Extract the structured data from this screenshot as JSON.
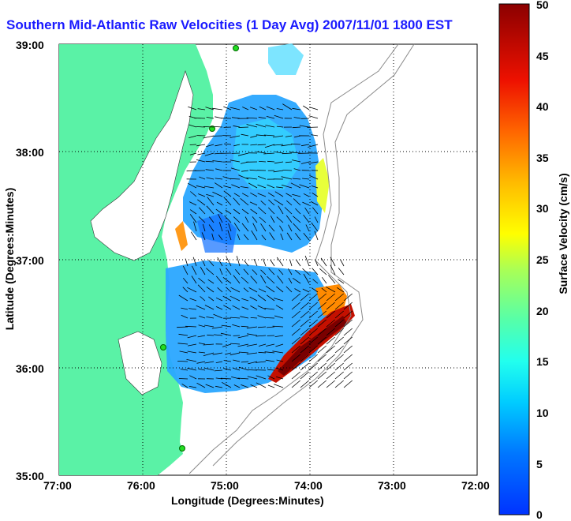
{
  "title": "Southern Mid-Atlantic Raw Velocities (1 Day Avg) 2007/11/01 1800 EST",
  "xlabel": "Longitude (Degrees:Minutes)",
  "ylabel": "Latitude (Degrees:Minutes)",
  "colorbar_label": "Surface Velocity (cm/s)",
  "x_ticks": [
    "77:00",
    "76:00",
    "75:00",
    "74:00",
    "73:00",
    "72:00"
  ],
  "y_ticks": [
    "39:00",
    "38:00",
    "37:00",
    "36:00",
    "35:00"
  ],
  "colorbar_ticks": [
    "0",
    "5",
    "10",
    "15",
    "20",
    "25",
    "30",
    "35",
    "40",
    "45",
    "50"
  ],
  "map_extent": {
    "lon_min": -77,
    "lon_max": -72,
    "lat_min": 35,
    "lat_max": 39
  },
  "colorbar_range": [
    0,
    50
  ],
  "colors": {
    "land": "#5af2a6",
    "title": "#1a1aff",
    "grid": "#000000"
  }
}
